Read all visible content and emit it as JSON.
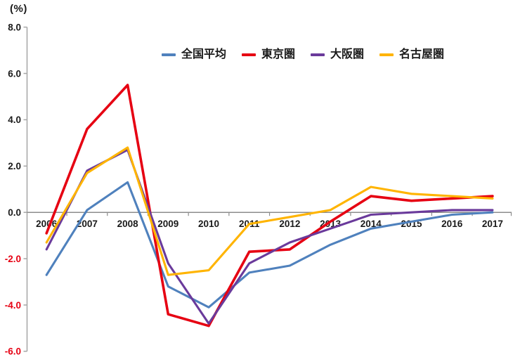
{
  "axis_unit_label": "(%)",
  "chart_data": {
    "type": "line",
    "title": "",
    "xlabel": "",
    "ylabel": "(%)",
    "x": [
      "2006",
      "2007",
      "2008",
      "2009",
      "2010",
      "2011",
      "2012",
      "2013",
      "2014",
      "2015",
      "2016",
      "2017"
    ],
    "series": [
      {
        "name": "全国平均",
        "color": "#4F81BD",
        "values": [
          -2.7,
          0.1,
          1.3,
          -3.2,
          -4.1,
          -2.6,
          -2.3,
          -1.4,
          -0.7,
          -0.4,
          -0.1,
          0.0
        ]
      },
      {
        "name": "東京圏",
        "color": "#E60012",
        "values": [
          -0.9,
          3.6,
          5.5,
          -4.4,
          -4.9,
          -1.7,
          -1.6,
          -0.4,
          0.7,
          0.5,
          0.6,
          0.7
        ]
      },
      {
        "name": "大阪圏",
        "color": "#6A3A9B",
        "values": [
          -1.6,
          1.8,
          2.7,
          -2.2,
          -4.8,
          -2.2,
          -1.3,
          -0.7,
          -0.1,
          0.0,
          0.1,
          0.1
        ]
      },
      {
        "name": "名古屋圏",
        "color": "#FFB400",
        "values": [
          -1.3,
          1.7,
          2.8,
          -2.7,
          -2.5,
          -0.5,
          -0.2,
          0.1,
          1.1,
          0.8,
          0.7,
          0.6
        ]
      }
    ],
    "ylim": [
      -6.0,
      8.0
    ],
    "ytick_step": 2.0,
    "ytick_labels": [
      "8.0",
      "6.0",
      "4.0",
      "2.0",
      "0.0",
      "-2.0",
      "-4.0",
      "-6.0"
    ],
    "ytick_positive_color": "#1a1a1a",
    "ytick_negative_color": "#E60012",
    "axis_color": "#A6A6A6",
    "zero_line_color": "#8C8C8C",
    "legend_position": "top-center",
    "grid": false
  }
}
